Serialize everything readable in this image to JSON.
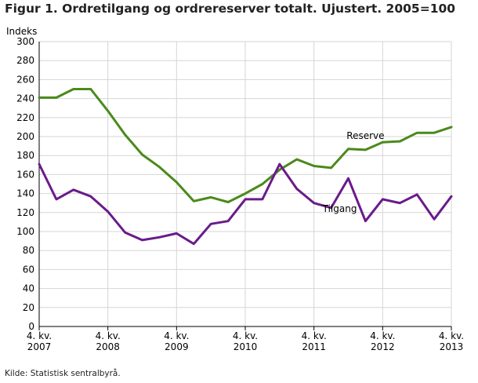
{
  "title": "Figur 1. Ordretilgang og ordrereserver totalt. Ujustert. 2005=100",
  "source": "Kilde: Statistisk sentralbyrå.",
  "chart_data": {
    "type": "line",
    "ylabel": "Indeks",
    "xlabel": "",
    "ylim": [
      0,
      300
    ],
    "ytick_step": 20,
    "grid": true,
    "legend": "inline labels",
    "x_tick_labels": [
      {
        "index": 0,
        "line1": "4. kv.",
        "line2": "2007"
      },
      {
        "index": 4,
        "line1": "4. kv.",
        "line2": "2008"
      },
      {
        "index": 8,
        "line1": "4. kv.",
        "line2": "2009"
      },
      {
        "index": 12,
        "line1": "4. kv.",
        "line2": "2010"
      },
      {
        "index": 16,
        "line1": "4. kv.",
        "line2": "2011"
      },
      {
        "index": 20,
        "line1": "4. kv.",
        "line2": "2012"
      },
      {
        "index": 24,
        "line1": "4. kv.",
        "line2": "2013"
      }
    ],
    "x": [
      "2007K4",
      "2008K1",
      "2008K2",
      "2008K3",
      "2008K4",
      "2009K1",
      "2009K2",
      "2009K3",
      "2009K4",
      "2010K1",
      "2010K2",
      "2010K3",
      "2010K4",
      "2011K1",
      "2011K2",
      "2011K3",
      "2011K4",
      "2012K1",
      "2012K2",
      "2012K3",
      "2012K4",
      "2013K1",
      "2013K2",
      "2013K3",
      "2013K4"
    ],
    "series": [
      {
        "name": "Reserve",
        "color": "#4a8a1c",
        "values": [
          241,
          241,
          250,
          250,
          227,
          202,
          181,
          168,
          152,
          132,
          136,
          131,
          140,
          150,
          165,
          176,
          169,
          167,
          187,
          186,
          194,
          195,
          204,
          204,
          210
        ]
      },
      {
        "name": "Tilgang",
        "color": "#6a1b8a",
        "values": [
          171,
          134,
          144,
          137,
          121,
          99,
          91,
          94,
          98,
          87,
          108,
          111,
          134,
          134,
          171,
          145,
          130,
          125,
          156,
          111,
          134,
          130,
          139,
          113,
          137
        ]
      }
    ]
  }
}
